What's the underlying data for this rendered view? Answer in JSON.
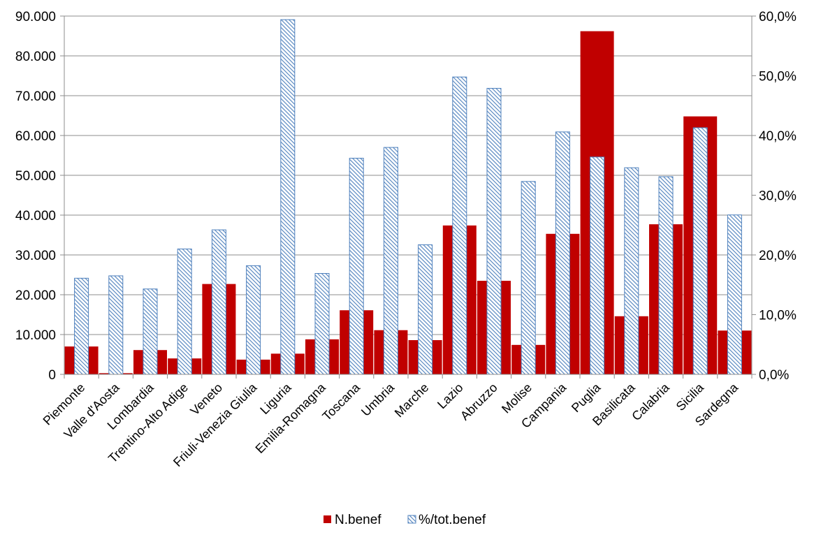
{
  "chart_data": {
    "type": "bar",
    "categories": [
      "Piemonte",
      "Valle d'Aosta",
      "Lombardia",
      "Trentino-Alto Adige",
      "Veneto",
      "Friuli-Venezia Giulia",
      "Liguria",
      "Emilia-Romagna",
      "Toscana",
      "Umbria",
      "Marche",
      "Lazio",
      "Abruzzo",
      "Molise",
      "Campania",
      "Puglia",
      "Basilicata",
      "Calabria",
      "Sicilia",
      "Sardegna"
    ],
    "series": [
      {
        "name": "N.benef",
        "axis": "left",
        "color": "#c00000",
        "values": [
          7000,
          300,
          6100,
          4000,
          22700,
          3700,
          5200,
          8800,
          16100,
          11100,
          8600,
          37400,
          23500,
          7400,
          35300,
          86200,
          14600,
          37700,
          64800,
          11000
        ]
      },
      {
        "name": "%/tot.benef",
        "axis": "right",
        "color": "#4f81bd",
        "pattern": "diagonal-hatch",
        "values": [
          16.1,
          16.5,
          14.3,
          21.0,
          24.2,
          18.2,
          59.4,
          16.9,
          36.2,
          38.0,
          21.7,
          49.8,
          47.9,
          32.3,
          40.6,
          36.4,
          34.6,
          33.1,
          41.3,
          26.7
        ]
      }
    ],
    "y_left": {
      "min": 0,
      "max": 90000,
      "step": 10000,
      "tick_labels": [
        "0",
        "10.000",
        "20.000",
        "30.000",
        "40.000",
        "50.000",
        "60.000",
        "70.000",
        "80.000",
        "90.000"
      ]
    },
    "y_right": {
      "min": 0,
      "max": 60,
      "step": 10,
      "tick_labels": [
        "0,0%",
        "10,0%",
        "20,0%",
        "30,0%",
        "40,0%",
        "50,0%",
        "60,0%"
      ]
    },
    "grid": true,
    "legend": {
      "position": "bottom",
      "items": [
        "N.benef",
        "%/tot.benef"
      ]
    }
  }
}
